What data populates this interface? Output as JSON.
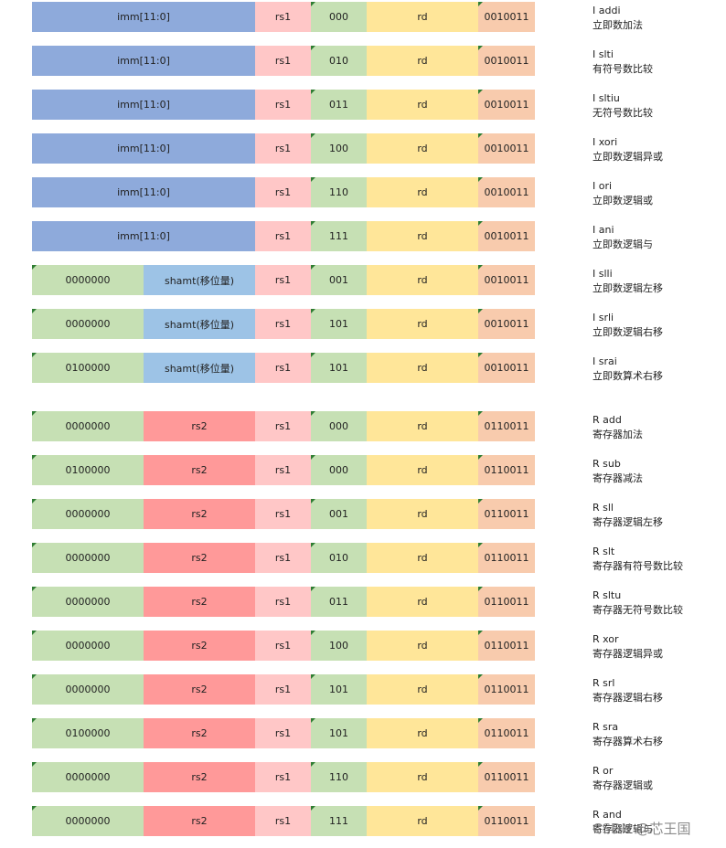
{
  "colors": {
    "imm": "#8eaadb",
    "funct7": "#c6e0b4",
    "shamt": "#9dc3e6",
    "rs2": "#ff9999",
    "rs1": "#ffc7c7",
    "funct3": "#c6e0b4",
    "rd": "#ffe699",
    "opcode": "#f8cbad"
  },
  "rows": [
    {
      "type": "I-imm",
      "imm": "imm[11:0]",
      "rs1": "rs1",
      "funct3": "000",
      "rd": "rd",
      "opcode": "0010011",
      "name": "I addi",
      "desc": "立即数加法"
    },
    {
      "type": "I-imm",
      "imm": "imm[11:0]",
      "rs1": "rs1",
      "funct3": "010",
      "rd": "rd",
      "opcode": "0010011",
      "name": "I slti",
      "desc": "有符号数比较"
    },
    {
      "type": "I-imm",
      "imm": "imm[11:0]",
      "rs1": "rs1",
      "funct3": "011",
      "rd": "rd",
      "opcode": "0010011",
      "name": "I sltiu",
      "desc": "无符号数比较"
    },
    {
      "type": "I-imm",
      "imm": "imm[11:0]",
      "rs1": "rs1",
      "funct3": "100",
      "rd": "rd",
      "opcode": "0010011",
      "name": "I xori",
      "desc": "立即数逻辑异或"
    },
    {
      "type": "I-imm",
      "imm": "imm[11:0]",
      "rs1": "rs1",
      "funct3": "110",
      "rd": "rd",
      "opcode": "0010011",
      "name": "I ori",
      "desc": "立即数逻辑或"
    },
    {
      "type": "I-imm",
      "imm": "imm[11:0]",
      "rs1": "rs1",
      "funct3": "111",
      "rd": "rd",
      "opcode": "0010011",
      "name": "I ani",
      "desc": "立即数逻辑与"
    },
    {
      "type": "I-shamt",
      "funct7": "0000000",
      "shamt": "shamt(移位量)",
      "rs1": "rs1",
      "funct3": "001",
      "rd": "rd",
      "opcode": "0010011",
      "name": "I slli",
      "desc": "立即数逻辑左移"
    },
    {
      "type": "I-shamt",
      "funct7": "0000000",
      "shamt": "shamt(移位量)",
      "rs1": "rs1",
      "funct3": "101",
      "rd": "rd",
      "opcode": "0010011",
      "name": "I srli",
      "desc": "立即数逻辑右移"
    },
    {
      "type": "I-shamt",
      "funct7": "0100000",
      "shamt": "shamt(移位量)",
      "rs1": "rs1",
      "funct3": "101",
      "rd": "rd",
      "opcode": "0010011",
      "name": "I srai",
      "desc": "立即数算术右移"
    },
    {
      "type": "R",
      "funct7": "0000000",
      "rs2": "rs2",
      "rs1": "rs1",
      "funct3": "000",
      "rd": "rd",
      "opcode": "0110011",
      "name": "R add",
      "desc": "寄存器加法"
    },
    {
      "type": "R",
      "funct7": "0100000",
      "rs2": "rs2",
      "rs1": "rs1",
      "funct3": "000",
      "rd": "rd",
      "opcode": "0110011",
      "name": "R sub",
      "desc": "寄存器减法"
    },
    {
      "type": "R",
      "funct7": "0000000",
      "rs2": "rs2",
      "rs1": "rs1",
      "funct3": "001",
      "rd": "rd",
      "opcode": "0110011",
      "name": "R sll",
      "desc": "寄存器逻辑左移"
    },
    {
      "type": "R",
      "funct7": "0000000",
      "rs2": "rs2",
      "rs1": "rs1",
      "funct3": "010",
      "rd": "rd",
      "opcode": "0110011",
      "name": "R slt",
      "desc": "寄存器有符号数比较"
    },
    {
      "type": "R",
      "funct7": "0000000",
      "rs2": "rs2",
      "rs1": "rs1",
      "funct3": "011",
      "rd": "rd",
      "opcode": "0110011",
      "name": "R sltu",
      "desc": "寄存器无符号数比较"
    },
    {
      "type": "R",
      "funct7": "0000000",
      "rs2": "rs2",
      "rs1": "rs1",
      "funct3": "100",
      "rd": "rd",
      "opcode": "0110011",
      "name": "R xor",
      "desc": "寄存器逻辑异或"
    },
    {
      "type": "R",
      "funct7": "0000000",
      "rs2": "rs2",
      "rs1": "rs1",
      "funct3": "101",
      "rd": "rd",
      "opcode": "0110011",
      "name": "R srl",
      "desc": "寄存器逻辑右移"
    },
    {
      "type": "R",
      "funct7": "0100000",
      "rs2": "rs2",
      "rs1": "rs1",
      "funct3": "101",
      "rd": "rd",
      "opcode": "0110011",
      "name": "R sra",
      "desc": "寄存器算术右移"
    },
    {
      "type": "R",
      "funct7": "0000000",
      "rs2": "rs2",
      "rs1": "rs1",
      "funct3": "110",
      "rd": "rd",
      "opcode": "0110011",
      "name": "R or",
      "desc": "寄存器逻辑或"
    },
    {
      "type": "R",
      "funct7": "0000000",
      "rs2": "rs2",
      "rs1": "rs1",
      "funct3": "111",
      "rd": "rd",
      "opcode": "0110011",
      "name": "R and",
      "desc": "寄存器逻辑与"
    }
  ],
  "watermark": "CSDN @芯王国"
}
